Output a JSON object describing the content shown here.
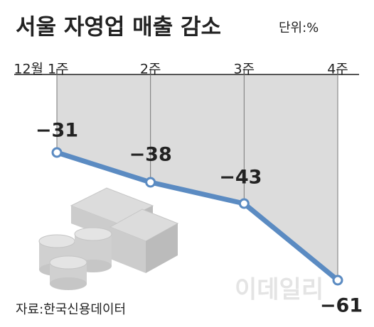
{
  "chart_data": {
    "type": "line",
    "title": "서울 자영업 매출 감소",
    "subtitle": "단위:%",
    "categories": [
      "12월 1주",
      "2주",
      "3주",
      "4주"
    ],
    "values": [
      -31,
      -38,
      -43,
      -61
    ],
    "value_labels": [
      "−31",
      "−38",
      "−43",
      "−61"
    ],
    "color": "#5b8bc2",
    "area_color": "#dcdcdc",
    "source": "자료:한국신용데이터",
    "watermark": "이데일리"
  }
}
